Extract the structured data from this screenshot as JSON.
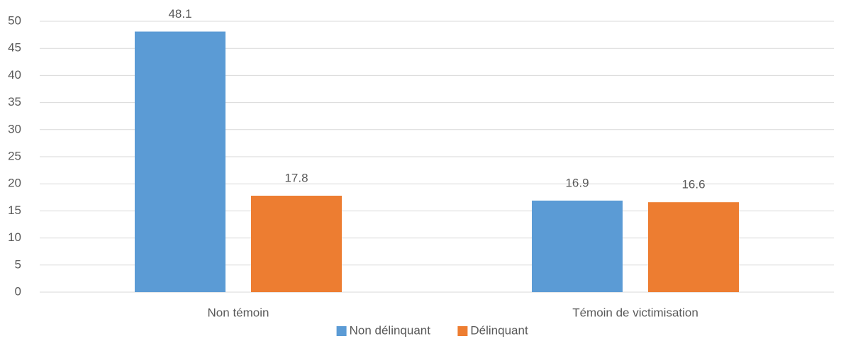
{
  "chart_data": {
    "type": "bar",
    "categories": [
      "Non témoin",
      "Témoin de victimisation"
    ],
    "series": [
      {
        "name": "Non délinquant",
        "color": "#5b9bd5",
        "values": [
          48.1,
          16.9
        ]
      },
      {
        "name": "Délinquant",
        "color": "#ed7d31",
        "values": [
          17.8,
          16.6
        ]
      }
    ],
    "ylim": [
      0,
      50
    ],
    "yticks": [
      0,
      5,
      10,
      15,
      20,
      25,
      30,
      35,
      40,
      45,
      50
    ],
    "grid": true,
    "legend": "bottom"
  }
}
